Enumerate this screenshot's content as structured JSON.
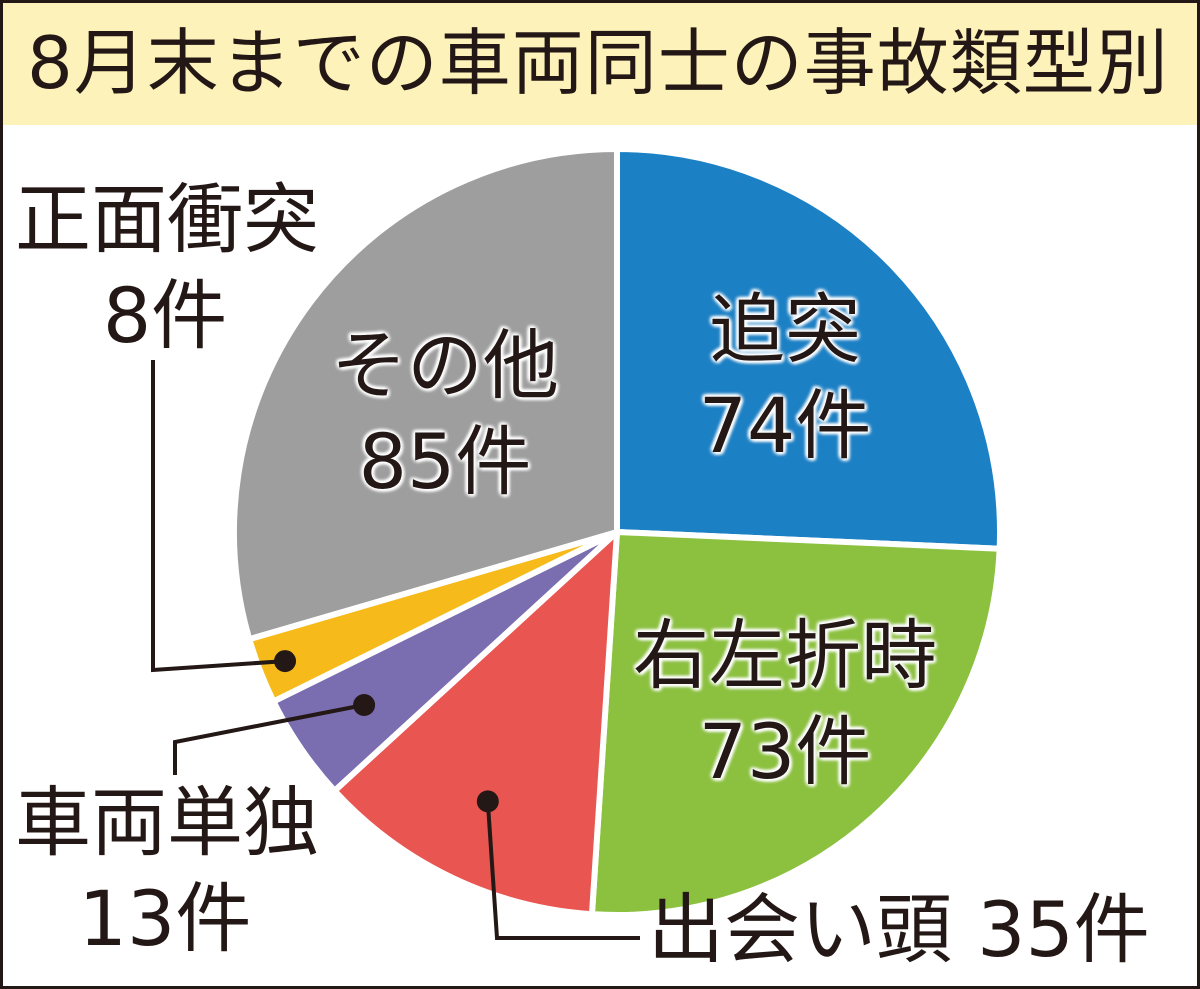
{
  "title": "8月末までの車両同士の事故類型別",
  "colors": {
    "rear_end": "#1c80c5",
    "turn": "#8cc13f",
    "crossing": "#e95550",
    "single": "#7a6db0",
    "head_on": "#f6bb1b",
    "other": "#9e9e9e",
    "frame": "#231815",
    "title_bg": "#fdf2b9"
  },
  "chart_data": {
    "type": "pie",
    "title": "8月末までの車両同士の事故類型別",
    "unit": "件",
    "slices": [
      {
        "key": "rear_end",
        "name": "追突",
        "value": 74,
        "label_value": "74件"
      },
      {
        "key": "turn",
        "name": "右左折時",
        "value": 73,
        "label_value": "73件"
      },
      {
        "key": "crossing",
        "name": "出会い頭",
        "value": 35,
        "label_value": "35件"
      },
      {
        "key": "single",
        "name": "車両単独",
        "value": 13,
        "label_value": "13件"
      },
      {
        "key": "head_on",
        "name": "正面衝突",
        "value": 8,
        "label_value": "8件"
      },
      {
        "key": "other",
        "name": "その他",
        "value": 85,
        "label_value": "85件"
      }
    ]
  }
}
